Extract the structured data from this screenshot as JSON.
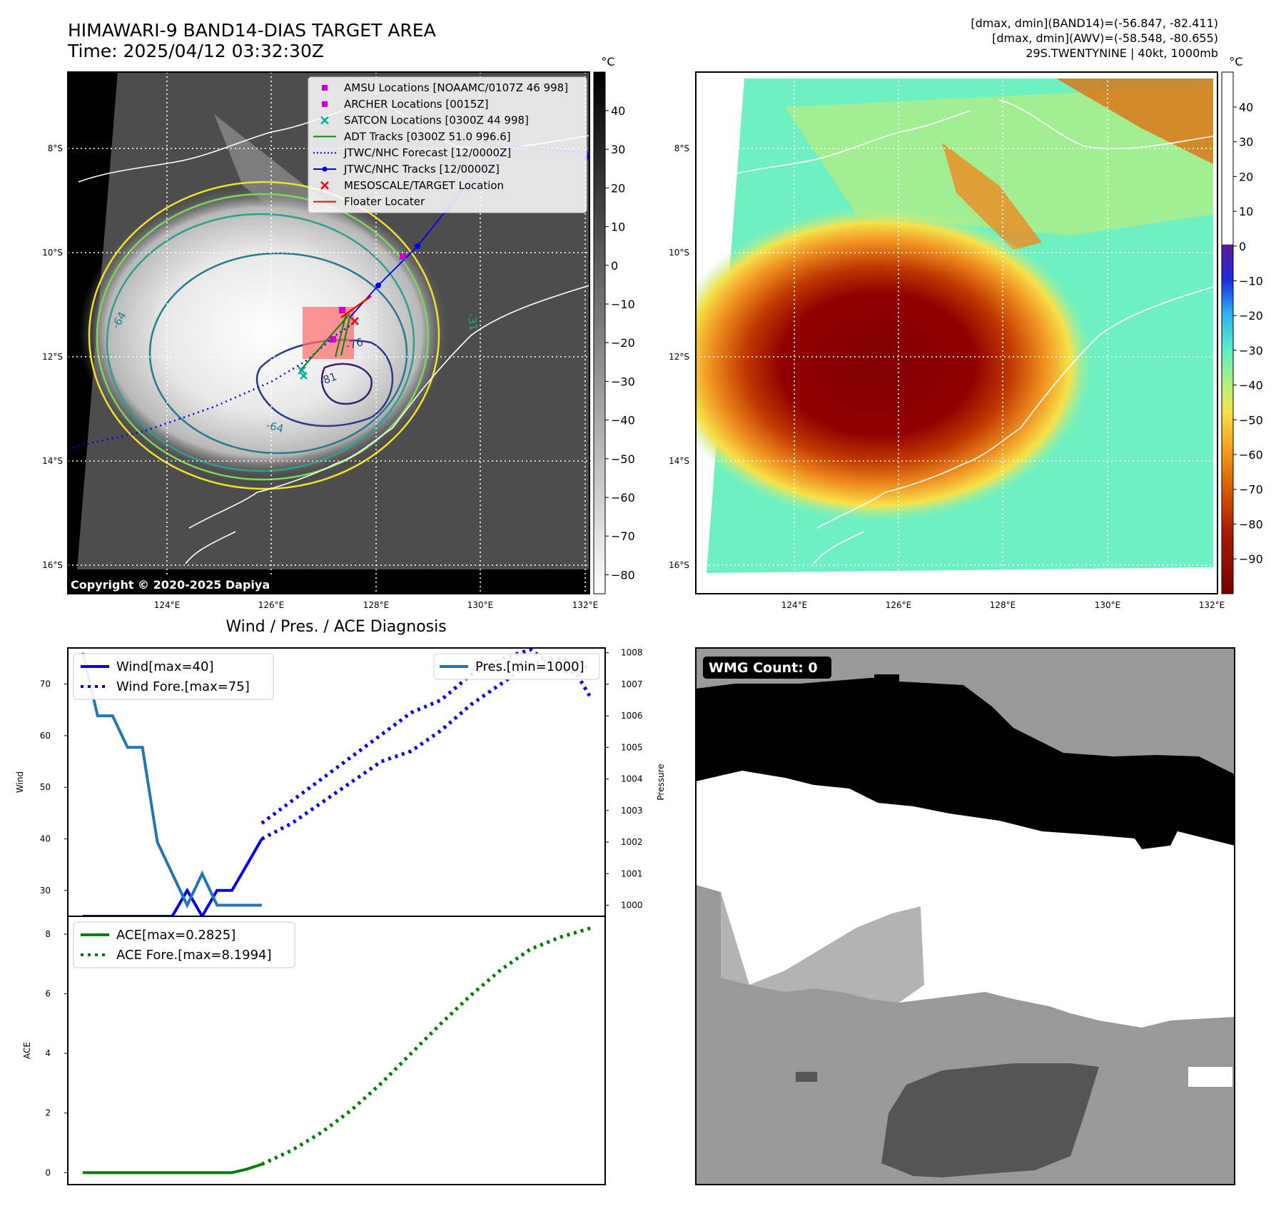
{
  "header": {
    "title": "HIMAWARI-9 BAND14-DIAS TARGET AREA",
    "time": "Time: 2025/04/12 03:32:30Z",
    "dmax_band14": "[dmax, dmin](BAND14)=(-56.847, -82.411)",
    "dmax_awv": "[dmax, dmin](AWV)=(-58.548, -80.655)",
    "storm": "29S.TWENTYNINE | 40kt, 1000mb"
  },
  "copyright": "Copyright © 2020-2025 Dapiya",
  "unit": "°C",
  "map": {
    "lat_labels": [
      "8°S",
      "10°S",
      "12°S",
      "14°S",
      "16°S"
    ],
    "lon_labels": [
      "124°E",
      "126°E",
      "128°E",
      "130°E",
      "132°E"
    ],
    "contour_labels": [
      "-76",
      "-81",
      "-64",
      "-64",
      "-31"
    ]
  },
  "legend": [
    {
      "label": "AMSU Locations [NOAAMC/0107Z 46 998]",
      "color": "#cc00cc",
      "marker": "square"
    },
    {
      "label": "ARCHER Locations [0015Z]",
      "color": "#cc00cc",
      "marker": "square"
    },
    {
      "label": "SATCON Locations [0300Z 44 998]",
      "color": "#00b0a0",
      "marker": "x"
    },
    {
      "label": "ADT Tracks [0300Z 51.0 996.6]",
      "color": "#118811",
      "marker": "line"
    },
    {
      "label": "JTWC/NHC Forecast [12/0000Z]",
      "color": "#0000ee",
      "marker": "dotted"
    },
    {
      "label": "JTWC/NHC Tracks [12/0000Z]",
      "color": "#0000ee",
      "marker": "line-dot"
    },
    {
      "label": "MESOSCALE/TARGET Location",
      "color": "#ff0000",
      "marker": "x"
    },
    {
      "label": "Floater Locater",
      "color": "#ff0000",
      "marker": "line"
    }
  ],
  "colorbar_gray": {
    "ticks": [
      "40",
      "30",
      "20",
      "10",
      "0",
      "−10",
      "−20",
      "−30",
      "−40",
      "−50",
      "−60",
      "−70",
      "−80"
    ]
  },
  "colorbar_color": {
    "ticks": [
      "40",
      "30",
      "20",
      "10",
      "0",
      "−10",
      "−20",
      "−30",
      "−40",
      "−50",
      "−60",
      "−70",
      "−80",
      "−90"
    ]
  },
  "diag_title": "Wind / Pres. / ACE Diagnosis",
  "wmg": {
    "label": "WMG Count: 0"
  },
  "chart_data": [
    {
      "type": "line",
      "title": "Wind / Pres. / ACE Diagnosis",
      "ylabel": "Wind",
      "ylabel_right": "Pressure",
      "ylim": [
        25,
        77
      ],
      "ylim_right": [
        999.65,
        1008.15
      ],
      "yticks": [
        30,
        40,
        50,
        60,
        70
      ],
      "yticks_right": [
        1000,
        1001,
        1002,
        1003,
        1004,
        1005,
        1006,
        1007,
        1008
      ],
      "legend": [
        "Wind[max=40]",
        "Wind Fore.[max=75]"
      ],
      "legend_right": [
        "Pres.[min=1000]"
      ],
      "series": [
        {
          "name": "Wind[max=40]",
          "axis": "left",
          "color": "#0000ee",
          "style": "solid",
          "x": [
            0,
            1,
            2,
            3,
            4,
            5,
            6,
            7,
            8,
            9,
            10,
            11,
            12
          ],
          "values": [
            25,
            25,
            25,
            25,
            25,
            25,
            25,
            30,
            25,
            30,
            30,
            35,
            40
          ]
        },
        {
          "name": "Wind Fore.[max=75]",
          "axis": "left",
          "color": "#0000ee",
          "style": "dotted",
          "x": [
            12,
            14,
            16,
            18,
            20,
            22,
            24,
            26,
            28,
            30,
            32,
            34
          ],
          "values": [
            40,
            43,
            47,
            51,
            55,
            57,
            61,
            66,
            70,
            74,
            75,
            73
          ]
        },
        {
          "name": "Pres.[min=1000]",
          "axis": "right",
          "color": "#1f77b4",
          "style": "solid",
          "x": [
            0,
            1,
            2,
            3,
            4,
            5,
            6,
            7,
            8,
            9,
            10,
            11,
            12
          ],
          "values": [
            1008,
            1006,
            1006,
            1005,
            1005,
            1002,
            1001,
            1000,
            1001,
            1000,
            1000,
            1000,
            1000
          ]
        },
        {
          "name": "",
          "axis": "right",
          "color": "#0000ee",
          "style": "dotted",
          "x": [
            12,
            14,
            16,
            18,
            20,
            22,
            24,
            26,
            28,
            30,
            32,
            33,
            34
          ],
          "values": [
            1002.6,
            1003.3,
            1004,
            1004.7,
            1005.4,
            1006.1,
            1006.5,
            1007.3,
            1007.8,
            1008.1,
            1007.4,
            1007.4,
            1006.6
          ]
        }
      ],
      "xlim": [
        -1,
        35
      ]
    },
    {
      "type": "line",
      "ylabel": "ACE",
      "ylim": [
        -0.4,
        8.6
      ],
      "yticks": [
        0,
        2,
        4,
        6,
        8
      ],
      "legend": [
        "ACE[max=0.2825]",
        "ACE Fore.[max=8.1994]"
      ],
      "series": [
        {
          "name": "ACE[max=0.2825]",
          "color": "#008000",
          "style": "solid",
          "x": [
            0,
            4,
            8,
            10,
            11,
            12
          ],
          "values": [
            0,
            0,
            0,
            0,
            0.12,
            0.2825
          ]
        },
        {
          "name": "ACE Fore.[max=8.1994]",
          "color": "#008000",
          "style": "dotted",
          "x": [
            12,
            14,
            16,
            18,
            20,
            22,
            24,
            26,
            28,
            30,
            32,
            34
          ],
          "values": [
            0.2825,
            0.75,
            1.35,
            2.1,
            3.0,
            4.0,
            5.0,
            5.95,
            6.8,
            7.5,
            7.9,
            8.1994
          ]
        }
      ],
      "xlim": [
        -1,
        35
      ]
    }
  ]
}
